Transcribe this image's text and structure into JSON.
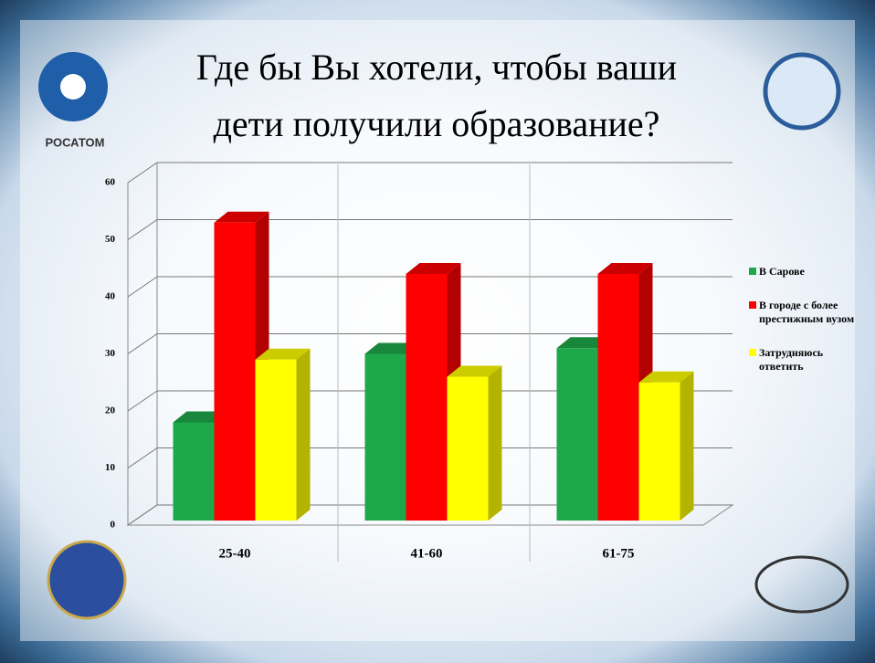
{
  "logo_text": "РОСАТОМ",
  "chart_data": {
    "type": "bar3d",
    "title": [
      "Где бы Вы хотели, чтобы ваши",
      "дети получили образование?"
    ],
    "categories": [
      "25-40",
      "41-60",
      "61-75"
    ],
    "series": [
      {
        "name": "В Сарове",
        "color": "#1ea84a",
        "values": [
          18,
          30,
          31
        ]
      },
      {
        "name": "В городе с более престижным вузом",
        "color": "#ff0000",
        "values": [
          53,
          44,
          44
        ]
      },
      {
        "name": "Затрудняюсь ответить",
        "color": "#ffff00",
        "values": [
          29,
          26,
          25
        ]
      }
    ],
    "ylim": [
      0,
      60
    ],
    "yticks": [
      0,
      10,
      20,
      30,
      40,
      50,
      60
    ],
    "grid": true,
    "legend": "right"
  }
}
